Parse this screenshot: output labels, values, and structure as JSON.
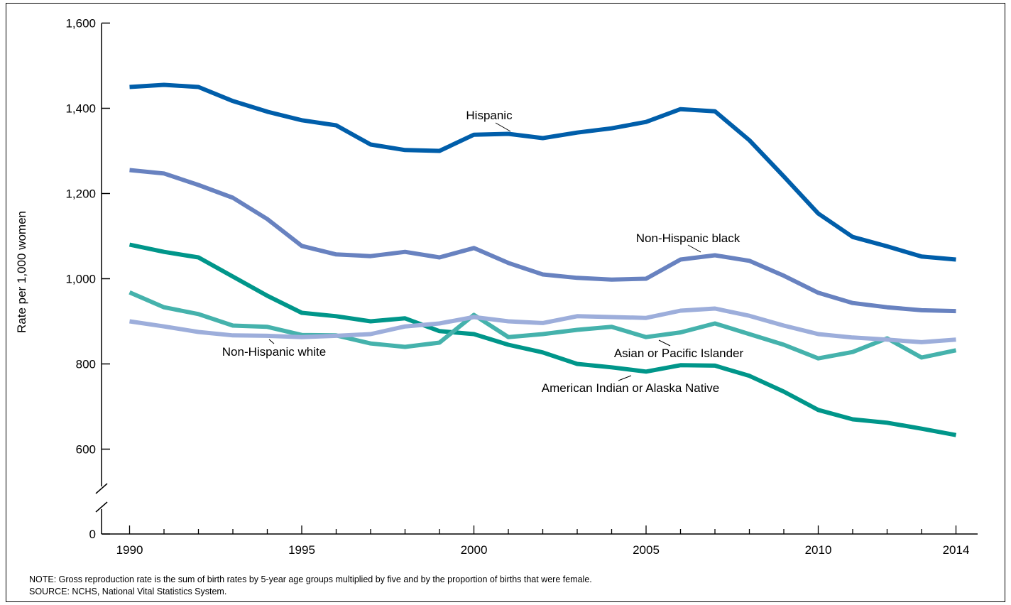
{
  "chart_data": {
    "type": "line",
    "ylabel": "Rate per 1,000 women",
    "xlabel": "",
    "ylim": [
      0,
      1600
    ],
    "axis_break": [
      500,
      600
    ],
    "yticks": [
      0,
      600,
      800,
      1000,
      1200,
      1400,
      1600
    ],
    "ytick_labels": [
      "0",
      "600",
      "800",
      "1,000",
      "1,200",
      "1,400",
      "1,600"
    ],
    "xticks": [
      1990,
      1995,
      2000,
      2005,
      2010,
      2014
    ],
    "xtick_labels": [
      "1990",
      "1995",
      "2000",
      "2005",
      "2010",
      "2014"
    ],
    "x": [
      1990,
      1991,
      1992,
      1993,
      1994,
      1995,
      1996,
      1997,
      1998,
      1999,
      2000,
      2001,
      2002,
      2003,
      2004,
      2005,
      2006,
      2007,
      2008,
      2009,
      2010,
      2011,
      2012,
      2013,
      2014
    ],
    "series": [
      {
        "name": "Hispanic",
        "color": "#005EAA",
        "values": [
          1450,
          1455,
          1450,
          1417,
          1392,
          1372,
          1360,
          1315,
          1302,
          1300,
          1338,
          1340,
          1330,
          1343,
          1353,
          1368,
          1398,
          1393,
          1325,
          1240,
          1153,
          1098,
          1076,
          1052,
          1045
        ]
      },
      {
        "name": "Non-Hispanic black",
        "color": "#6882C0",
        "values": [
          1255,
          1247,
          1220,
          1190,
          1140,
          1077,
          1057,
          1053,
          1063,
          1050,
          1072,
          1037,
          1010,
          1002,
          998,
          1000,
          1045,
          1055,
          1042,
          1007,
          967,
          943,
          933,
          926,
          924
        ]
      },
      {
        "name": "American Indian or Alaska Native",
        "color": "#00968A",
        "values": [
          1080,
          1063,
          1050,
          1005,
          960,
          920,
          912,
          900,
          907,
          877,
          870,
          845,
          827,
          800,
          792,
          782,
          797,
          796,
          772,
          735,
          692,
          670,
          662,
          648,
          633
        ]
      },
      {
        "name": "Asian or Pacific Islander",
        "color": "#45B2AC",
        "values": [
          968,
          933,
          917,
          890,
          887,
          868,
          867,
          848,
          840,
          850,
          915,
          863,
          870,
          880,
          887,
          863,
          874,
          895,
          870,
          845,
          813,
          828,
          860,
          815,
          832
        ]
      },
      {
        "name": "Non-Hispanic white",
        "color": "#9DAEDB",
        "values": [
          900,
          888,
          875,
          867,
          866,
          863,
          866,
          870,
          888,
          895,
          910,
          900,
          896,
          912,
          910,
          908,
          925,
          930,
          913,
          890,
          870,
          862,
          857,
          851,
          857
        ]
      }
    ],
    "annotations": [
      "Hispanic",
      "Non-Hispanic black",
      "Non-Hispanic white",
      "Asian or Pacific Islander",
      "American Indian or Alaska Native"
    ]
  },
  "footer": {
    "note": "NOTE: Gross reproduction rate is the sum of birth rates by 5-year age groups multiplied by five and by the proportion of births that were female.",
    "source": "SOURCE: NCHS, National Vital Statistics System."
  }
}
